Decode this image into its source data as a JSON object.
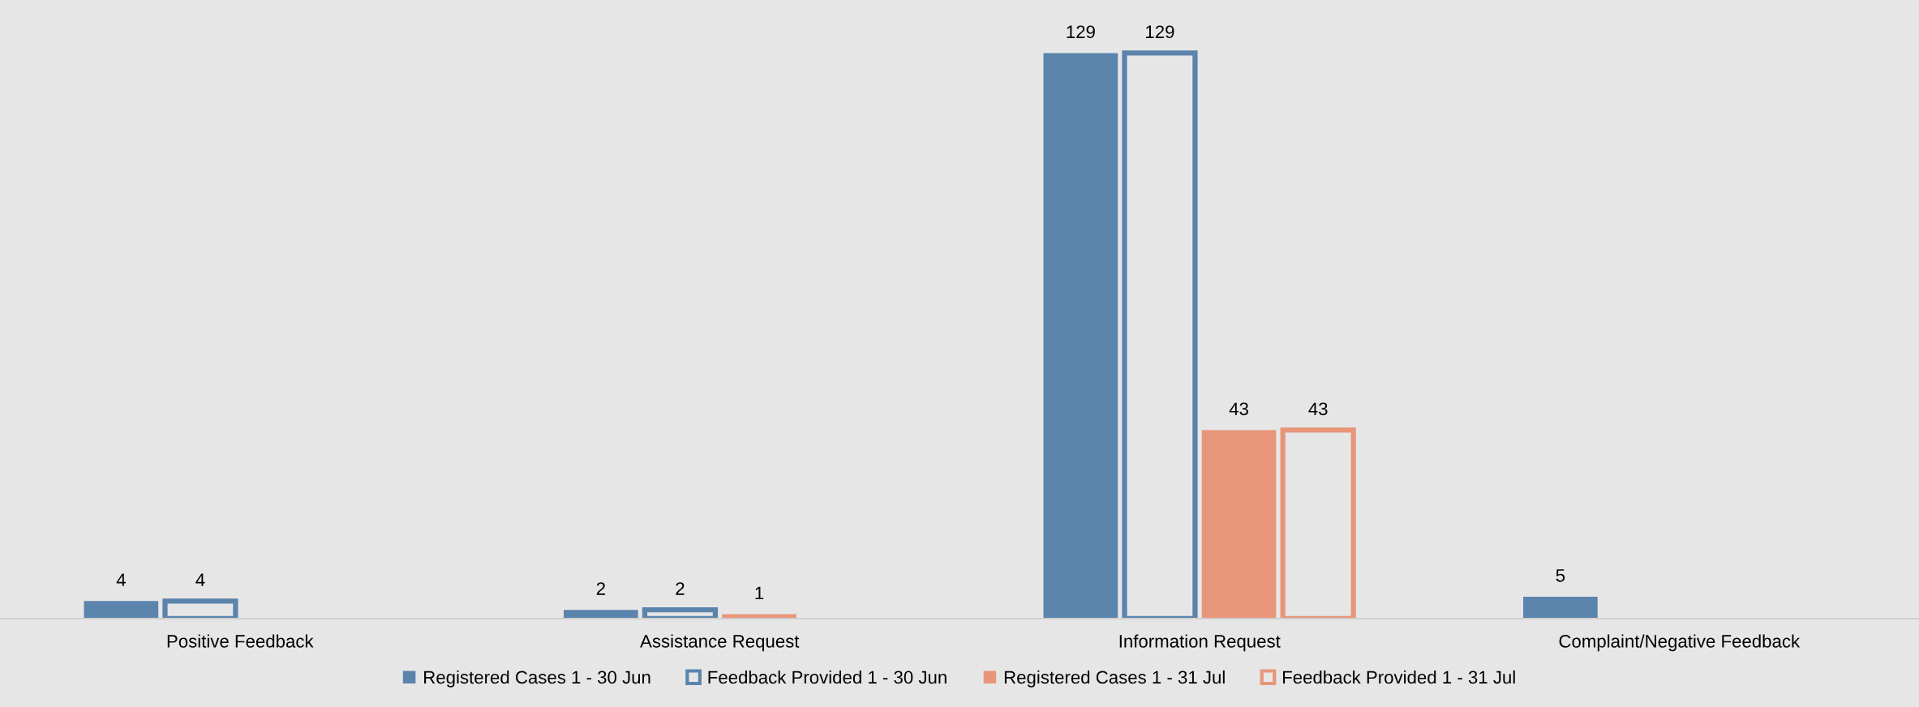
{
  "chart_data": {
    "type": "bar",
    "categories": [
      "Positive Feedback",
      "Assistance Request",
      "Information Request",
      "Complaint/Negative Feedback"
    ],
    "series": [
      {
        "name": "Registered Cases 1 - 30 Jun",
        "color": "#5b84ad",
        "values": [
          4,
          2,
          129,
          5
        ]
      },
      {
        "name": "Feedback Provided 1 - 30 Jun",
        "color": "#5b84ad",
        "values": [
          4,
          2,
          129,
          null
        ]
      },
      {
        "name": "Registered Cases 1 - 31 Jul",
        "color": "#e8967a",
        "values": [
          null,
          1,
          43,
          null
        ]
      },
      {
        "name": "Feedback Provided 1 - 31 Jul",
        "color": "#e8967a",
        "values": [
          null,
          null,
          43,
          null
        ]
      }
    ],
    "data_labels": true,
    "legend": "bottom",
    "grid": false
  }
}
